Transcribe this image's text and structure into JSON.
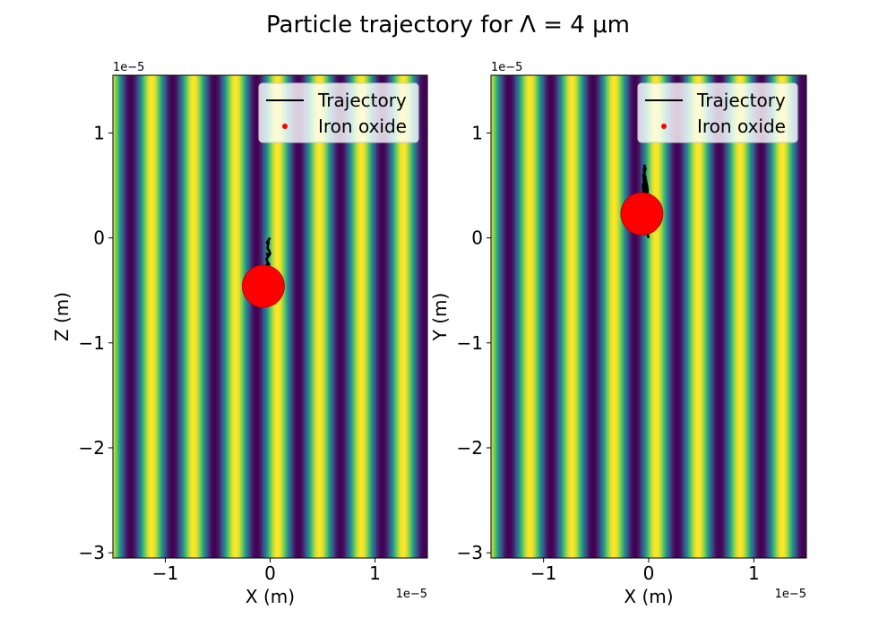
{
  "figure": {
    "title": "Particle trajectory for Λ = 4 μm"
  },
  "legend": {
    "trajectory_label": "Trajectory",
    "particle_label": "Iron oxide",
    "placement": "top-right"
  },
  "colors": {
    "trajectory": "#000000",
    "particle": "#ff0000",
    "colormap": [
      "#440154",
      "#3b528b",
      "#21918c",
      "#5ec962",
      "#fde725"
    ]
  },
  "chart_data": [
    {
      "type": "scatter",
      "title": "",
      "xlabel": "X (m)",
      "ylabel": "Z (m)",
      "x_offset_text": "1e−5",
      "y_offset_text": "1e−5",
      "xlim": [
        -1.5e-05,
        1.5e-05
      ],
      "ylim": [
        -3.05e-05,
        1.55e-05
      ],
      "x_ticks": [
        -1e-05,
        0,
        1e-05
      ],
      "x_tick_labels": [
        "−1",
        "0",
        "1"
      ],
      "y_ticks": [
        -3e-05,
        -2e-05,
        -1e-05,
        0,
        1e-05
      ],
      "y_tick_labels": [
        "−3",
        "−2",
        "−1",
        "0",
        "1"
      ],
      "grid": false,
      "background": {
        "type": "interference_pattern",
        "period_m": 4e-06,
        "orientation": "vertical fringes"
      },
      "series": [
        {
          "name": "Trajectory",
          "kind": "line",
          "x": [
            0,
            -1e-07,
            -2e-07,
            -1.5e-07,
            -3e-07,
            -2e-07,
            -2.5e-07,
            -1e-07,
            0,
            -1.5e-07,
            -3e-07,
            -2e-07,
            -3.5e-07,
            -2.5e-07,
            -1e-07,
            -2e-07,
            -3e-07,
            -2.5e-07,
            -1e-07,
            -2e-07,
            -3.5e-07,
            -2.5e-07,
            -1.5e-07,
            -3e-07,
            -4e-07,
            -3e-07,
            -2e-07,
            -3.5e-07,
            -2.5e-07,
            -1e-07,
            -2e-07,
            -1.5e-07,
            -3e-07,
            -4.5e-07,
            -5e-07,
            -4e-07,
            -5.5e-07,
            -5e-07,
            -6e-07,
            -6.5e-07
          ],
          "y": [
            0,
            -1e-07,
            -3e-07,
            -5e-07,
            -4e-07,
            -7e-07,
            -1e-06,
            -1.2e-06,
            -1.5e-06,
            -1.7e-06,
            -1.5e-06,
            -1.8e-06,
            -2e-06,
            -2.3e-06,
            -2.5e-06,
            -2.8e-06,
            -2.6e-06,
            -3e-06,
            -3.2e-06,
            -3.5e-06,
            -3.3e-06,
            -3.7e-06,
            -3.9e-06,
            -3.6e-06,
            -3e-06,
            -2.5e-06,
            -2.7e-06,
            -3.2e-06,
            -3.8e-06,
            -3.5e-06,
            -3e-06,
            -2.8e-06,
            -3.1e-06,
            -3.5e-06,
            -2.9e-06,
            -3.3e-06,
            -3.1e-06,
            -3.7e-06,
            -4e-06,
            -4.6e-06
          ]
        },
        {
          "name": "Iron oxide",
          "kind": "particle",
          "x": [
            -6.5e-07
          ],
          "y": [
            -4.6e-06
          ],
          "radius_m": 2e-06
        }
      ]
    },
    {
      "type": "scatter",
      "title": "",
      "xlabel": "X (m)",
      "ylabel": "Y (m)",
      "x_offset_text": "1e−5",
      "y_offset_text": "1e−5",
      "xlim": [
        -1.5e-05,
        1.5e-05
      ],
      "ylim": [
        -3.05e-05,
        1.55e-05
      ],
      "x_ticks": [
        -1e-05,
        0,
        1e-05
      ],
      "x_tick_labels": [
        "−1",
        "0",
        "1"
      ],
      "y_ticks": [
        -3e-05,
        -2e-05,
        -1e-05,
        0,
        1e-05
      ],
      "y_tick_labels": [
        "−3",
        "−2",
        "−1",
        "0",
        "1"
      ],
      "grid": false,
      "background": {
        "type": "interference_pattern",
        "period_m": 4e-06,
        "orientation": "vertical fringes"
      },
      "series": [
        {
          "name": "Trajectory",
          "kind": "line",
          "x": [
            0,
            -1e-07,
            -2e-07,
            -1e-07,
            0,
            -1e-07,
            -2e-07,
            -3e-07,
            -2e-07,
            -1e-07,
            -2e-07,
            -3e-07,
            -2e-07,
            -1e-07,
            -2e-07,
            -3e-07,
            -2.5e-07,
            -1.5e-07,
            -2.5e-07,
            -3.5e-07,
            -3e-07,
            -4e-07,
            -4.5e-07,
            -4e-07,
            -3e-07,
            -4e-07,
            -5e-07,
            -4.5e-07,
            -5.5e-07,
            -5e-07,
            -5.5e-07,
            -6e-07,
            -5.5e-07,
            -6e-07,
            -6.5e-07
          ],
          "y": [
            0,
            3e-07,
            6e-07,
            9e-07,
            1.5e-06,
            2e-06,
            2.5e-06,
            2.8e-06,
            3.2e-06,
            3.8e-06,
            4.3e-06,
            3.6e-06,
            3e-06,
            4.6e-06,
            5.2e-06,
            4.8e-06,
            5.5e-06,
            4.2e-06,
            3.9e-06,
            5e-06,
            5.8e-06,
            6e-06,
            6.4e-06,
            6.9e-06,
            6.6e-06,
            6.2e-06,
            6e-06,
            5.3e-06,
            5e-06,
            4.2e-06,
            3.6e-06,
            3.2e-06,
            2.8e-06,
            2.5e-06,
            2.3e-06
          ]
        },
        {
          "name": "Iron oxide",
          "kind": "particle",
          "x": [
            -6.5e-07
          ],
          "y": [
            2.3e-06
          ],
          "radius_m": 2e-06
        }
      ]
    }
  ]
}
